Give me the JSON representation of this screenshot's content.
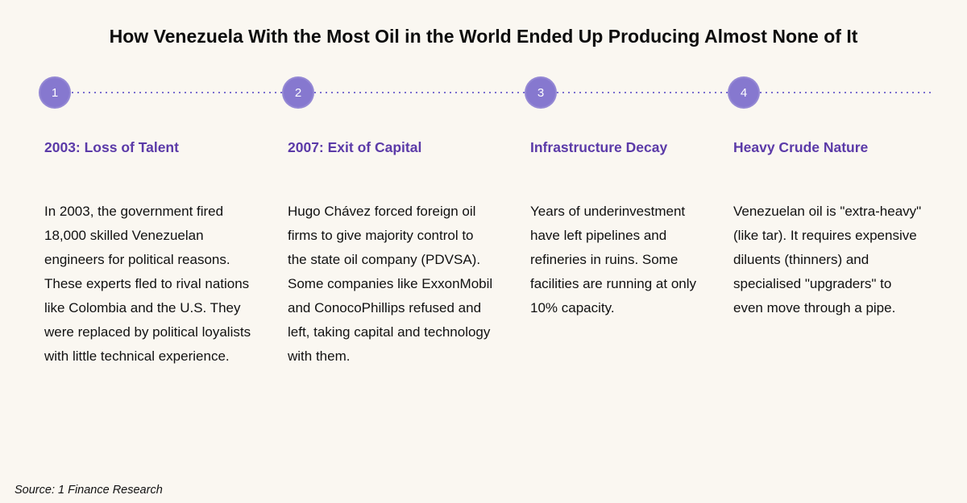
{
  "title": "How Venezuela With the Most Oil in the World Ended Up Producing Almost None of It",
  "source": "Source: 1 Finance Research",
  "colors": {
    "background": "#faf7f1",
    "accent": "#8678cf",
    "heading": "#5b3aa8",
    "line": "#7b6fd0"
  },
  "timeline": {
    "steps": [
      {
        "number": "1",
        "heading": "2003: Loss of Talent",
        "body": "In 2003, the government fired 18,000 skilled Venezuelan engineers for political reasons. These experts fled to rival nations like Colombia and the U.S. They were replaced by political loyalists with little technical experience."
      },
      {
        "number": "2",
        "heading": "2007: Exit of Capital",
        "body": "Hugo Chávez forced foreign oil firms to give majority control to the state oil company (PDVSA). Some companies like ExxonMobil and ConocoPhillips refused and left, taking capital and technology with them."
      },
      {
        "number": "3",
        "heading": "Infrastructure Decay",
        "body": "Years of underinvestment have left pipelines and refineries in ruins. Some facilities are running at only 10% capacity."
      },
      {
        "number": "4",
        "heading": "Heavy Crude Nature",
        "body": "Venezuelan oil is \"extra-heavy\" (like tar). It requires expensive diluents (thinners) and specialised \"upgraders\" to even move through a pipe."
      }
    ]
  }
}
